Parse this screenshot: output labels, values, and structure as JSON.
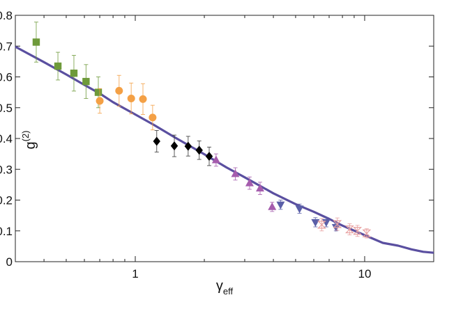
{
  "chart_data": {
    "type": "scatter",
    "title": "",
    "xlabel": "γ",
    "xlabel_sub": "eff",
    "ylabel": "g",
    "ylabel_sup": "(2)",
    "x_scale": "log",
    "xlim": [
      0.3,
      20
    ],
    "ylim": [
      0,
      0.8
    ],
    "x_ticks": [
      {
        "value": 1,
        "label": "1"
      },
      {
        "value": 10,
        "label": "10"
      }
    ],
    "y_ticks": [
      {
        "value": 0,
        "label": "0"
      },
      {
        "value": 0.1,
        "label": "0.1"
      },
      {
        "value": 0.2,
        "label": "0.2"
      },
      {
        "value": 0.3,
        "label": "0.3"
      },
      {
        "value": 0.4,
        "label": "0.4"
      },
      {
        "value": 0.5,
        "label": "0.5"
      },
      {
        "value": 0.6,
        "label": "0.6"
      },
      {
        "value": 0.7,
        "label": "0.7"
      },
      {
        "value": 0.8,
        "label": "0.8"
      }
    ],
    "grid": false,
    "legend": "none",
    "theory_curve": {
      "color": "#5a4fa0",
      "x": [
        0.3,
        0.4,
        0.5,
        0.6,
        0.7,
        0.8,
        1.0,
        1.2,
        1.5,
        2.0,
        2.5,
        3.0,
        4.0,
        5.0,
        6.0,
        7.0,
        8.0,
        10.0,
        12.0,
        14.0,
        16.0,
        18.0,
        20.0
      ],
      "y": [
        0.698,
        0.648,
        0.608,
        0.574,
        0.546,
        0.518,
        0.478,
        0.445,
        0.402,
        0.349,
        0.306,
        0.274,
        0.222,
        0.187,
        0.162,
        0.139,
        0.117,
        0.086,
        0.061,
        0.052,
        0.04,
        0.032,
        0.029
      ]
    },
    "series": [
      {
        "marker": "square",
        "color": "#6e9a3a",
        "x": [
          0.37,
          0.46,
          0.54,
          0.61,
          0.69
        ],
        "y": [
          0.713,
          0.635,
          0.612,
          0.585,
          0.55
        ],
        "err": [
          0.065,
          0.045,
          0.058,
          0.055,
          0.05
        ]
      },
      {
        "marker": "circle",
        "color": "#f4a045",
        "x": [
          0.7,
          0.85,
          0.96,
          1.08,
          1.19
        ],
        "y": [
          0.522,
          0.555,
          0.53,
          0.528,
          0.468
        ],
        "err": [
          0.04,
          0.05,
          0.05,
          0.05,
          0.04
        ]
      },
      {
        "marker": "diamond",
        "color": "#000000",
        "x": [
          1.24,
          1.48,
          1.7,
          1.9,
          2.1
        ],
        "y": [
          0.391,
          0.376,
          0.375,
          0.362,
          0.342
        ],
        "err": [
          0.035,
          0.035,
          0.032,
          0.03,
          0.03
        ]
      },
      {
        "marker": "triangle-up",
        "color": "#a55cad",
        "x": [
          2.25,
          2.73,
          3.15,
          3.5,
          3.95
        ],
        "y": [
          0.33,
          0.285,
          0.255,
          0.238,
          0.178
        ],
        "err": [
          0.02,
          0.02,
          0.02,
          0.02,
          0.015
        ]
      },
      {
        "marker": "triangle-down",
        "color": "#5a5fa8",
        "x": [
          4.3,
          5.2,
          6.1,
          6.8,
          7.5
        ],
        "y": [
          0.185,
          0.172,
          0.128,
          0.128,
          0.112
        ],
        "err": [
          0.015,
          0.015,
          0.015,
          0.015,
          0.012
        ]
      },
      {
        "marker": "hourglass",
        "color": "#e8a0a0",
        "x": [
          6.5,
          7.6,
          8.6,
          9.3,
          10.2
        ],
        "y": [
          0.12,
          0.122,
          0.105,
          0.1,
          0.092
        ],
        "err": [
          0.02,
          0.02,
          0.018,
          0.018,
          0.015
        ]
      }
    ]
  }
}
